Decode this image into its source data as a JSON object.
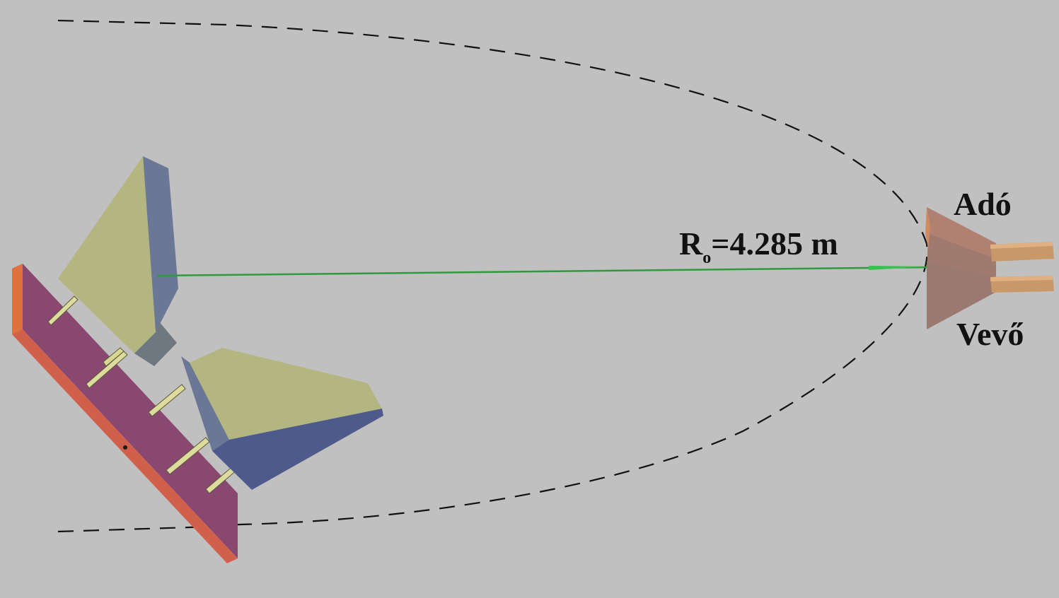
{
  "labels": {
    "distance_symbol": "R",
    "distance_subscript": "o",
    "distance_value": "=4.285 m",
    "transmitter": "Adó",
    "receiver": "Vevő"
  },
  "colors": {
    "background": "#c0c0c0",
    "dashed_curve": "#111111",
    "beam_line": "#2e9a3c",
    "mount_plate_face": "#884870",
    "mount_plate_edge": "#d06060",
    "horn_face_light": "#b4b682",
    "horn_side_slate": "#6a7896",
    "horn_side_blue": "#4e5a8c",
    "horn_block_gray": "#6e7880",
    "support_rods": "#dedc9c",
    "tx_rx_horns": "#a07a6e",
    "tx_rx_waveguide": "#c89868"
  }
}
